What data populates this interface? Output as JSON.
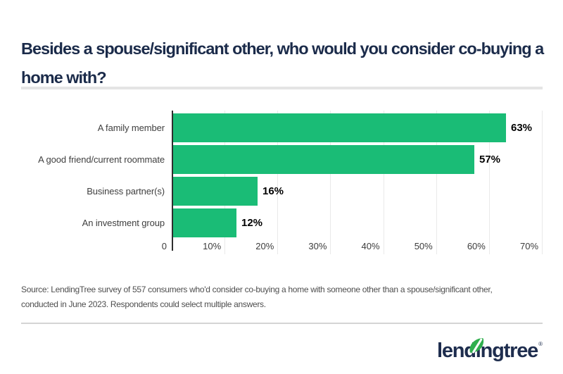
{
  "header": {
    "title": "Besides a spouse/significant other, who would you consider co-buying a home with?",
    "title_lines": [
      "Besides a spouse/significant other, who would you consider co-buying a",
      "home with?"
    ]
  },
  "chart_data": {
    "type": "bar",
    "orientation": "horizontal",
    "title": "Besides a spouse/significant other, who would you consider co-buying a home with?",
    "categories": [
      "A family member",
      "A good friend/current roommate",
      "Business partner(s)",
      "An investment group"
    ],
    "values": [
      63,
      57,
      16,
      12
    ],
    "value_labels": [
      "63%",
      "57%",
      "16%",
      "12%"
    ],
    "axis_ticks": [
      "0",
      "10%",
      "20%",
      "30%",
      "40%",
      "50%",
      "60%",
      "70%"
    ],
    "xlim": [
      0,
      70
    ],
    "xlabel": "",
    "ylabel": "",
    "grid": true,
    "legend": "none",
    "bar_color": "#1abc76",
    "gridline_color": "#e9e9e9",
    "axis_line_color": "#2e2e2e"
  },
  "source": {
    "text": "Source: LendingTree survey of 557 consumers who'd consider co-buying a home with someone other than a spouse/significant other, conducted in June 2023. Respondents could select multiple answers.",
    "lines": [
      "Source: LendingTree survey of 557 consumers who'd consider co-buying a home with someone other than a spouse/significant other,",
      "conducted in June 2023. Respondents could select multiple answers."
    ]
  },
  "footer": {
    "logo": {
      "brand": "lendingtree",
      "display_before": "lend",
      "display_i": "ı",
      "display_after": "ngtree",
      "registered": "®",
      "navy_color": "#1e2d4e",
      "leaf_color": "#2faf4d"
    }
  }
}
